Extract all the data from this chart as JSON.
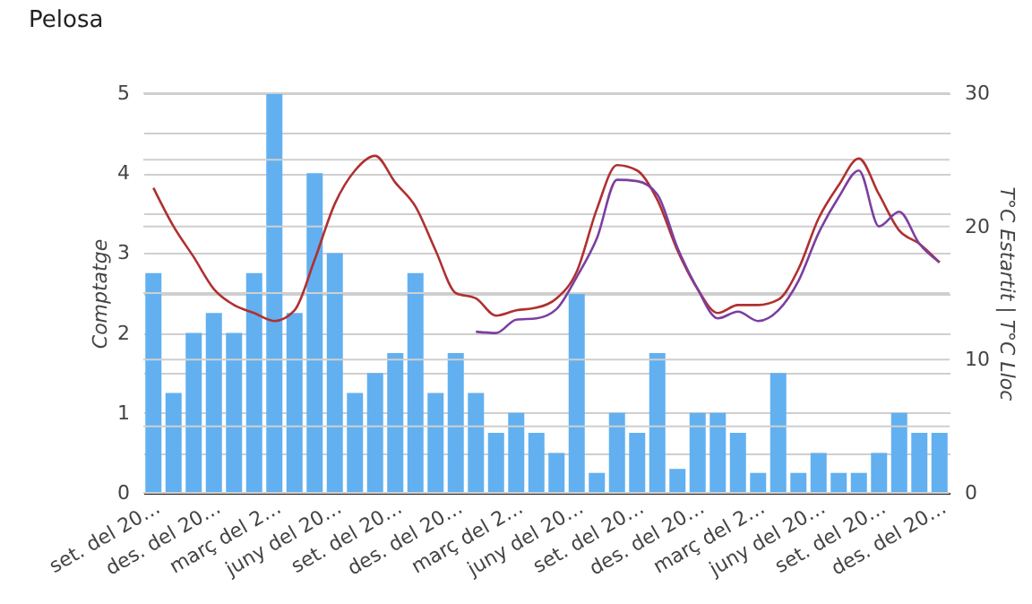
{
  "chart_data": {
    "type": "bar",
    "title": "Pelosa",
    "ylabel": "Comptatge",
    "y2label": "T°C Estartit | T°C Lloc",
    "categories": [
      "set. del 20…",
      null,
      null,
      "des. del 20…",
      null,
      null,
      "març del 2…",
      null,
      null,
      "juny del 20…",
      null,
      null,
      "set. del 20…",
      null,
      null,
      "des. del 20…",
      null,
      null,
      "març del 2…",
      null,
      null,
      "juny del 20…",
      null,
      null,
      "set. del 20…",
      null,
      null,
      "des. del 20…",
      null,
      null,
      "març del 2…",
      null,
      null,
      "juny del 20…",
      null,
      null,
      "set. del 20…",
      null,
      null,
      "des. del 20…"
    ],
    "series": [
      {
        "type": "bar",
        "color": "#62b0f0",
        "values": [
          2.75,
          1.25,
          2,
          2.25,
          2,
          2.75,
          5,
          2.25,
          4,
          3,
          1.25,
          1.5,
          1.75,
          2.75,
          1.25,
          1.75,
          1.25,
          0.75,
          1,
          0.75,
          0.5,
          2.5,
          0.25,
          1,
          0.75,
          1.75,
          0.3,
          1,
          1,
          0.75,
          0.25,
          1.5,
          0.25,
          0.5,
          0.25,
          0.25,
          0.5,
          1,
          0.75,
          0.75
        ]
      },
      {
        "type": "line",
        "axis": "y2",
        "color": "#b03030",
        "values": [
          22.9,
          20,
          17.7,
          15.3,
          14.1,
          13.5,
          12.9,
          13.7,
          17.5,
          21.7,
          24.2,
          25.3,
          23.3,
          21.5,
          18.2,
          15,
          14.6,
          13.3,
          13.7,
          13.9,
          14.6,
          16.6,
          21.3,
          24.6,
          24.2,
          22,
          18.2,
          15.3,
          13.5,
          14.1,
          14.1,
          14.5,
          16.8,
          20.6,
          23.1,
          25.1,
          22.4,
          19.7,
          18.7,
          17.3
        ]
      },
      {
        "type": "line",
        "axis": "y2",
        "color": "#7b3fa0",
        "values": [
          null,
          null,
          null,
          null,
          null,
          null,
          null,
          null,
          null,
          null,
          null,
          null,
          null,
          null,
          null,
          null,
          12.1,
          12,
          13,
          13.1,
          13.8,
          16.2,
          19.1,
          23.5,
          23.4,
          22.4,
          18.4,
          15.3,
          13.1,
          13.6,
          12.9,
          13.7,
          15.9,
          19.5,
          22.2,
          24.2,
          20,
          21.1,
          18.7,
          17.3
        ]
      }
    ],
    "ylim": [
      0,
      5
    ],
    "yticks": [
      0,
      {
        "value": 0.5,
        "label": null
      },
      1,
      {
        "value": 1.5,
        "label": null
      },
      2,
      {
        "value": 2.5,
        "label": null
      },
      3,
      {
        "value": 3.5,
        "label": null
      },
      4,
      {
        "value": 4.5,
        "label": null
      },
      5
    ],
    "y2lim": [
      0,
      30
    ],
    "y2ticks": [
      0,
      {
        "value": 5,
        "label": null
      },
      10,
      {
        "value": 15,
        "label": null
      },
      20,
      {
        "value": 25,
        "label": null
      },
      30
    ],
    "grid": true
  }
}
